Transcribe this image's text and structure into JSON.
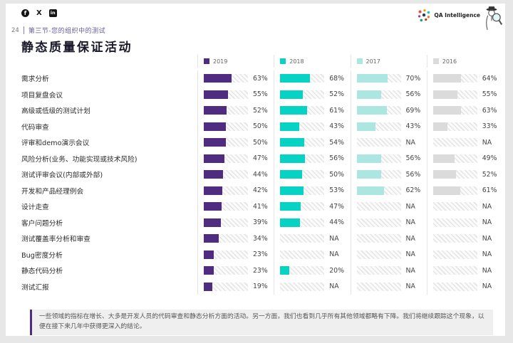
{
  "page": {
    "number": "24",
    "section": "第三节-您的组织中的测试",
    "title": "静态质量保证活动"
  },
  "logo": {
    "text": "QA Intelligence"
  },
  "social": {
    "facebook_glyph": "f",
    "x_glyph": "X",
    "linkedin_glyph": "in"
  },
  "chart_data": {
    "type": "bar",
    "orientation": "horizontal",
    "unit": "%",
    "na_label": "NA",
    "xlim": [
      0,
      100
    ],
    "legend_position": "top",
    "categories": [
      "需求分析",
      "项目复盘会议",
      "高级或低级的测试计划",
      "代码审查",
      "评审和demo演示会议",
      "风险分析(业务、功能实现或技术风险)",
      "测试评审会议(内部或外部)",
      "开发和产品经理例会",
      "设计走查",
      "客户问题分析",
      "测试覆盖率分析和审查",
      "Bug密度分析",
      "静态代码分析",
      "测试汇报"
    ],
    "series": [
      {
        "name": "2019",
        "color": "#4F2C7F",
        "values": [
          63,
          55,
          52,
          50,
          50,
          47,
          44,
          42,
          41,
          39,
          34,
          23,
          23,
          19
        ]
      },
      {
        "name": "2018",
        "color": "#06D3C4",
        "values": [
          68,
          52,
          61,
          43,
          54,
          56,
          50,
          53,
          47,
          44,
          "NA",
          "NA",
          20,
          "NA"
        ]
      },
      {
        "name": "2017",
        "color": "#ABE6E0",
        "values": [
          70,
          56,
          69,
          43,
          "NA",
          56,
          56,
          62,
          "NA",
          "NA",
          "NA",
          "NA",
          "NA",
          "NA"
        ]
      },
      {
        "name": "2016",
        "color": "#DBDBDB",
        "values": [
          64,
          55,
          63,
          33,
          "NA",
          49,
          52,
          61,
          "NA",
          "NA",
          "NA",
          "NA",
          "NA",
          "NA"
        ]
      }
    ]
  },
  "footnote": {
    "text": "一些领域的指标在增长、大多是开发人员的代码审查和静态分析方面的活动。另一方面，我们也看到几乎所有其他领域都略有下降。我们将继续跟踪这个现象，以便在接下来几年中获得更深入的结论。"
  }
}
